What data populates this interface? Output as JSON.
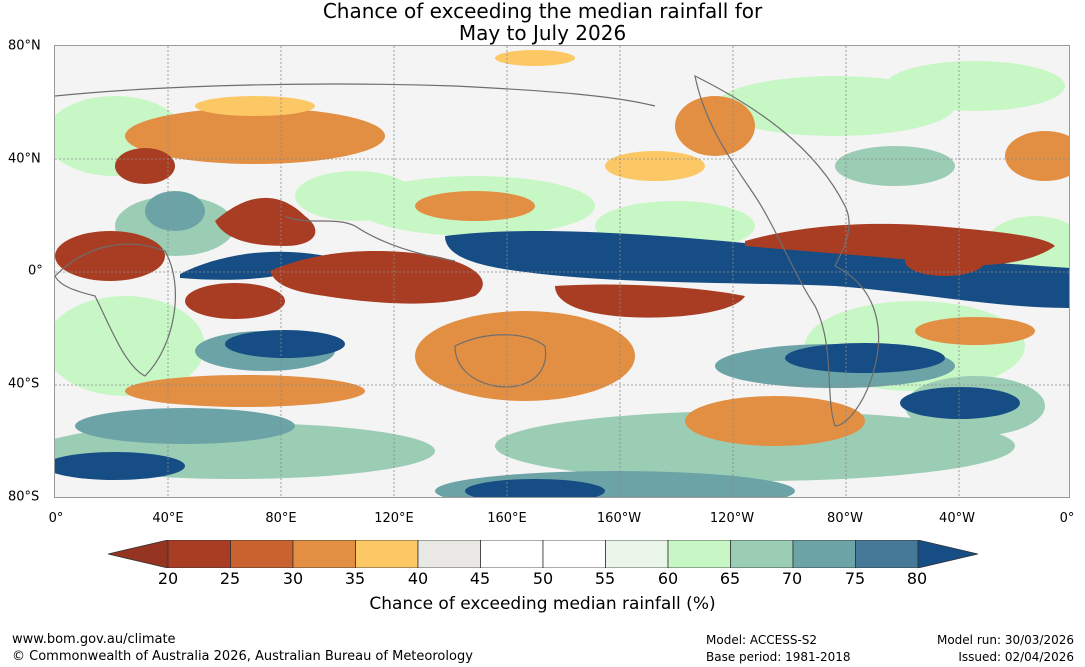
{
  "title": {
    "line1": "Chance of exceeding the median rainfall for",
    "line2": "May to July 2026"
  },
  "map": {
    "lat_labels": [
      "80°N",
      "40°N",
      "0°",
      "40°S",
      "80°S"
    ],
    "lon_labels": [
      "0°",
      "40°E",
      "80°E",
      "120°E",
      "160°E",
      "160°W",
      "120°W",
      "80°W",
      "40°W",
      "0°"
    ]
  },
  "colorbar": {
    "ticks": [
      "20",
      "25",
      "30",
      "35",
      "40",
      "45",
      "50",
      "55",
      "60",
      "65",
      "70",
      "75",
      "80"
    ],
    "colors": [
      "#a93d24",
      "#c9622f",
      "#e28f43",
      "#fcc865",
      "#e9e8e4",
      "#ffffff",
      "#ffffff",
      "#eaf6ea",
      "#c8f7c6",
      "#9bcdb5",
      "#6ca3a6",
      "#467897"
    ],
    "under_color": "#953421",
    "over_color": "#154d84",
    "title": "Chance of exceeding median rainfall (%)"
  },
  "footer": {
    "website": "www.bom.gov.au/climate",
    "copyright": "© Commonwealth of Australia 2026, Australian Bureau of Meteorology",
    "model": "Model: ACCESS-S2",
    "base_period": "Base period: 1981-2018",
    "model_run": "Model run: 30/03/2026",
    "issued": "Issued: 02/04/2026"
  }
}
